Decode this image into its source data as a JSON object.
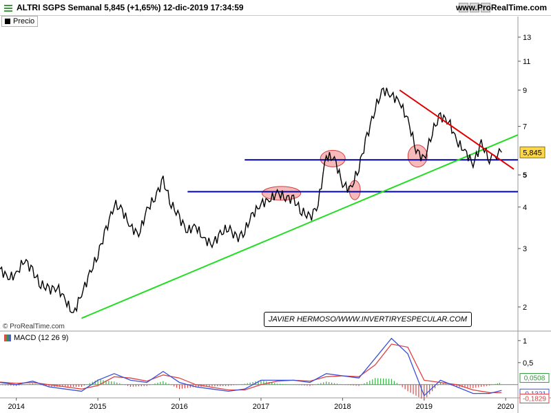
{
  "header": {
    "title": "ALTRI SGPS Semanal 5,845 (+1,65%) 12-dic-2019 17:34:59",
    "brand": "www.ProRealTime.com"
  },
  "price_panel": {
    "legend": "Precio",
    "copyright": "© ProRealTime.com",
    "credit": "JAVIER HERMOSO/WWW.INVERTIRYESPECULAR.COM",
    "last_value": "5,845",
    "colors": {
      "price": "#000000",
      "support": "#0000a0",
      "uptrend": "#22dd22",
      "downtrend": "#e00000",
      "highlight": "#f08080",
      "last_value_bg": "#ffd84a"
    }
  },
  "macd_panel": {
    "legend": "MACD (12 26 9)",
    "value_labels": [
      "0,0508",
      "-0,1321",
      "-0,1829"
    ],
    "colors": {
      "macd": "#3a4fd8",
      "signal": "#e04040",
      "hist_pos": "#38b048",
      "hist_neg": "#d84848"
    }
  },
  "chart_data": [
    {
      "type": "line",
      "title": "ALTRI SGPS Semanal",
      "y_scale": "log",
      "ylim": [
        1.7,
        15
      ],
      "y_ticks": [
        2,
        3,
        4,
        5,
        7,
        9,
        11,
        13
      ],
      "x_ticks": [
        "2014",
        "2015",
        "2016",
        "2017",
        "2018",
        "2019",
        "2020"
      ],
      "x_range": [
        2013.8,
        2020.15
      ],
      "series": [
        {
          "name": "Precio",
          "x": [
            2013.8,
            2013.9,
            2014.0,
            2014.1,
            2014.2,
            2014.3,
            2014.4,
            2014.5,
            2014.6,
            2014.7,
            2014.8,
            2014.9,
            2015.0,
            2015.1,
            2015.2,
            2015.3,
            2015.4,
            2015.5,
            2015.6,
            2015.7,
            2015.8,
            2015.9,
            2016.0,
            2016.1,
            2016.2,
            2016.3,
            2016.4,
            2016.5,
            2016.6,
            2016.7,
            2016.8,
            2016.9,
            2017.0,
            2017.1,
            2017.2,
            2017.3,
            2017.4,
            2017.5,
            2017.6,
            2017.7,
            2017.8,
            2017.9,
            2018.0,
            2018.1,
            2018.2,
            2018.3,
            2018.4,
            2018.5,
            2018.6,
            2018.7,
            2018.8,
            2018.9,
            2019.0,
            2019.1,
            2019.2,
            2019.3,
            2019.4,
            2019.5,
            2019.6,
            2019.7,
            2019.8,
            2019.95
          ],
          "values": [
            2.6,
            2.45,
            2.5,
            2.8,
            2.55,
            2.35,
            2.25,
            2.3,
            2.1,
            1.9,
            2.2,
            2.5,
            2.9,
            3.4,
            4.1,
            3.9,
            3.5,
            3.3,
            3.9,
            4.3,
            4.8,
            4.1,
            3.7,
            3.4,
            3.5,
            3.2,
            3.1,
            3.3,
            3.5,
            3.2,
            3.4,
            3.8,
            4.1,
            4.2,
            4.4,
            4.3,
            4.2,
            3.9,
            3.7,
            4.1,
            5.7,
            5.6,
            4.7,
            4.5,
            5.3,
            6.5,
            8.0,
            9.0,
            8.7,
            8.3,
            7.3,
            6.0,
            5.5,
            6.8,
            7.5,
            7.3,
            6.3,
            5.9,
            5.4,
            6.2,
            5.6,
            5.845
          ]
        }
      ],
      "annotations": {
        "support_lines": [
          4.45,
          5.55
        ],
        "uptrend": {
          "from": [
            2014.8,
            1.85
          ],
          "to": [
            2020.15,
            6.6
          ]
        },
        "downtrend": {
          "from": [
            2018.7,
            9.0
          ],
          "to": [
            2020.1,
            5.2
          ]
        },
        "highlighted_areas": [
          [
            2017.25,
            4.4
          ],
          [
            2017.88,
            5.6
          ],
          [
            2018.15,
            4.5
          ],
          [
            2018.92,
            5.7
          ],
          [
            2017.7,
            4.4
          ]
        ]
      }
    },
    {
      "type": "line",
      "title": "MACD (12 26 9)",
      "ylim": [
        -0.3,
        1.2
      ],
      "y_ticks": [
        0.5,
        1
      ],
      "series": [
        {
          "name": "MACD",
          "x": [
            2013.8,
            2014.0,
            2014.2,
            2014.4,
            2014.6,
            2014.8,
            2015.0,
            2015.2,
            2015.4,
            2015.6,
            2015.8,
            2016.0,
            2016.2,
            2016.4,
            2016.6,
            2016.8,
            2017.0,
            2017.2,
            2017.4,
            2017.6,
            2017.8,
            2018.0,
            2018.2,
            2018.4,
            2018.6,
            2018.8,
            2019.0,
            2019.2,
            2019.4,
            2019.6,
            2019.8,
            2019.95
          ],
          "values": [
            0.05,
            0.0,
            0.08,
            -0.05,
            -0.1,
            -0.15,
            0.1,
            0.25,
            0.1,
            0.05,
            0.3,
            0.05,
            -0.05,
            -0.1,
            -0.15,
            -0.1,
            0.1,
            0.1,
            0.1,
            0.05,
            0.25,
            0.2,
            0.15,
            0.6,
            1.05,
            0.7,
            -0.25,
            0.1,
            -0.05,
            -0.2,
            -0.2,
            -0.1321
          ]
        },
        {
          "name": "Signal",
          "x": [
            2013.8,
            2014.0,
            2014.2,
            2014.4,
            2014.6,
            2014.8,
            2015.0,
            2015.2,
            2015.4,
            2015.6,
            2015.8,
            2016.0,
            2016.2,
            2016.4,
            2016.6,
            2016.8,
            2017.0,
            2017.2,
            2017.4,
            2017.6,
            2017.8,
            2018.0,
            2018.2,
            2018.4,
            2018.6,
            2018.8,
            2019.0,
            2019.2,
            2019.4,
            2019.6,
            2019.8,
            2019.95
          ],
          "values": [
            0.06,
            0.03,
            0.05,
            0.0,
            -0.05,
            -0.1,
            -0.02,
            0.18,
            0.15,
            0.08,
            0.22,
            0.15,
            0.0,
            -0.06,
            -0.12,
            -0.12,
            0.0,
            0.08,
            0.1,
            0.08,
            0.18,
            0.2,
            0.18,
            0.45,
            0.92,
            0.85,
            0.1,
            0.05,
            0.0,
            -0.12,
            -0.18,
            -0.1829
          ]
        }
      ]
    }
  ]
}
